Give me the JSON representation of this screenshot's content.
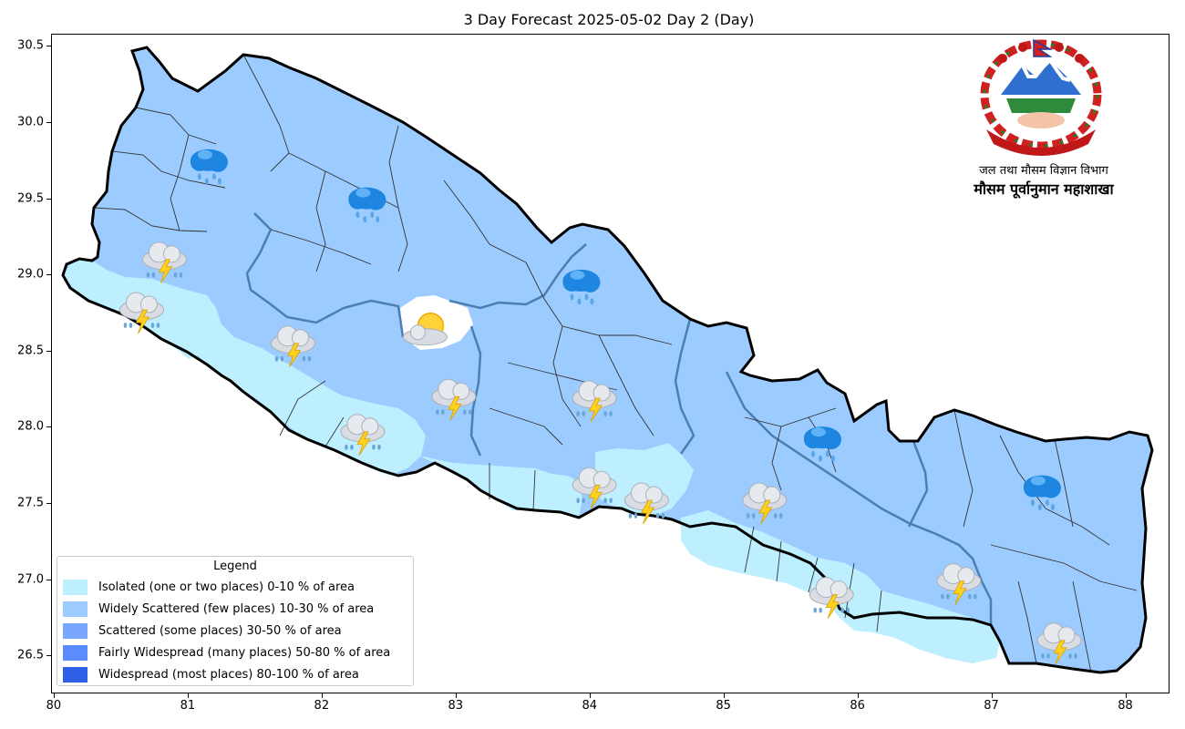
{
  "figure": {
    "title": "3 Day Forecast 2025-05-02 Day 2 (Day)"
  },
  "axes": {
    "x_ticks": [
      "80",
      "81",
      "82",
      "83",
      "84",
      "85",
      "86",
      "87",
      "88"
    ],
    "y_ticks": [
      "30.5",
      "30.0",
      "29.5",
      "29.0",
      "28.5",
      "28.0",
      "27.5",
      "27.0",
      "26.5"
    ],
    "xlim": [
      79.98,
      88.33
    ],
    "ylim": [
      26.25,
      30.58
    ]
  },
  "legend": {
    "title": "Legend",
    "placement": "bottom-left",
    "items": [
      {
        "label": "Isolated (one or two places)  0-10 % of area",
        "color": "#bdefff"
      },
      {
        "label": "Widely Scattered (few places) 10-30 % of area",
        "color": "#9cccff"
      },
      {
        "label": "Scattered (some places) 30-50  % of area",
        "color": "#79a7ff"
      },
      {
        "label": "Fairly Widespread (many places) 50-80 % of area",
        "color": "#5a8cff"
      },
      {
        "label": "Widespread (most places) 80-100 % of area",
        "color": "#2f5fe6"
      }
    ]
  },
  "header": {
    "department": "जल तथा मौसम विज्ञान विभाग",
    "division": "मौसम पूर्वानुमान महाशाखा"
  },
  "colors": {
    "isolated": "#bdefff",
    "widely_scattered": "#9cccff",
    "province_border": "#4a7fae",
    "country_border": "#000000",
    "district_border": "#333333"
  },
  "forecast_icons": [
    {
      "type": "rain-icon",
      "lon": 81.15,
      "lat": 29.72
    },
    {
      "type": "rain-icon",
      "lon": 82.33,
      "lat": 29.47
    },
    {
      "type": "rain-icon",
      "lon": 83.93,
      "lat": 28.93
    },
    {
      "type": "rain-icon",
      "lon": 85.73,
      "lat": 27.9
    },
    {
      "type": "rain-icon",
      "lon": 87.37,
      "lat": 27.58
    },
    {
      "type": "thunderstorm-icon",
      "lon": 80.82,
      "lat": 29.08
    },
    {
      "type": "thunderstorm-icon",
      "lon": 80.65,
      "lat": 28.75
    },
    {
      "type": "thunderstorm-icon",
      "lon": 81.78,
      "lat": 28.53
    },
    {
      "type": "thunderstorm-icon",
      "lon": 82.98,
      "lat": 28.18
    },
    {
      "type": "thunderstorm-icon",
      "lon": 82.3,
      "lat": 27.95
    },
    {
      "type": "thunderstorm-icon",
      "lon": 84.03,
      "lat": 28.17
    },
    {
      "type": "thunderstorm-icon",
      "lon": 84.03,
      "lat": 27.6
    },
    {
      "type": "thunderstorm-icon",
      "lon": 84.42,
      "lat": 27.5
    },
    {
      "type": "thunderstorm-icon",
      "lon": 85.3,
      "lat": 27.5
    },
    {
      "type": "thunderstorm-icon",
      "lon": 85.8,
      "lat": 26.88
    },
    {
      "type": "thunderstorm-icon",
      "lon": 86.75,
      "lat": 26.97
    },
    {
      "type": "thunderstorm-icon",
      "lon": 87.5,
      "lat": 26.58
    },
    {
      "type": "partly-cloudy-icon",
      "lon": 82.78,
      "lat": 28.62
    }
  ]
}
